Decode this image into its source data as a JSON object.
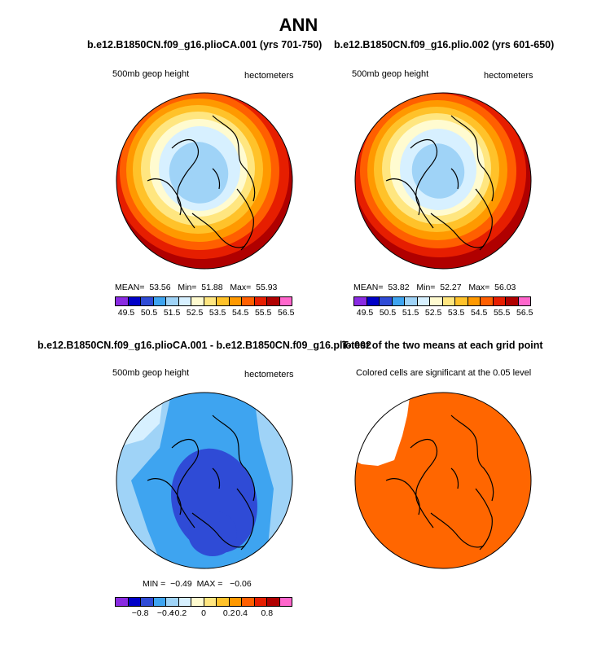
{
  "main_title": "ANN",
  "colorbar_fill_colors": [
    "#8a2be2",
    "#0000c8",
    "#2f4bd6",
    "#3ea4f0",
    "#9fd3f7",
    "#d7f0ff",
    "#fffbd0",
    "#ffe680",
    "#ffc22a",
    "#ff9900",
    "#ff5f00",
    "#e61e00",
    "#b00000",
    "#ff66cc"
  ],
  "chart_data": [
    {
      "type": "heatmap",
      "title": "b.e12.B1850CN.f09_g16.plioCA.001 (yrs 701-750)",
      "left_label": "500mb geop height",
      "right_label": "hectometers",
      "stats": {
        "mean_label": "MEAN=",
        "mean": "53.56",
        "min_label": "Min=",
        "min": "51.88",
        "max_label": "Max=",
        "max": "55.93"
      },
      "colorbar_ticks": [
        "49.5",
        "50.5",
        "51.5",
        "52.5",
        "53.5",
        "54.5",
        "55.5",
        "56.5"
      ]
    },
    {
      "type": "heatmap",
      "title": "b.e12.B1850CN.f09_g16.plio.002 (yrs 601-650)",
      "left_label": "500mb geop height",
      "right_label": "hectometers",
      "stats": {
        "mean_label": "MEAN=",
        "mean": "53.82",
        "min_label": "Min=",
        "min": "52.27",
        "max_label": "Max=",
        "max": "56.03"
      },
      "colorbar_ticks": [
        "49.5",
        "50.5",
        "51.5",
        "52.5",
        "53.5",
        "54.5",
        "55.5",
        "56.5"
      ]
    },
    {
      "type": "heatmap",
      "title": "b.e12.B1850CN.f09_g16.plioCA.001 - b.e12.B1850CN.f09_g16.plio.002",
      "left_label": "500mb geop height",
      "right_label": "hectometers",
      "stats": {
        "min_label": "MIN =",
        "min": "−0.49",
        "max_label": "MAX =",
        "max": "−0.06"
      },
      "colorbar_ticks": [
        "−0.8",
        "−0.4",
        "−0.2",
        "0",
        "0.2",
        "0.4",
        "0.8"
      ]
    },
    {
      "type": "heatmap",
      "title": "T-test of the two means at each grid point",
      "subtitle": "Colored cells are significant at the 0.05 level"
    }
  ]
}
